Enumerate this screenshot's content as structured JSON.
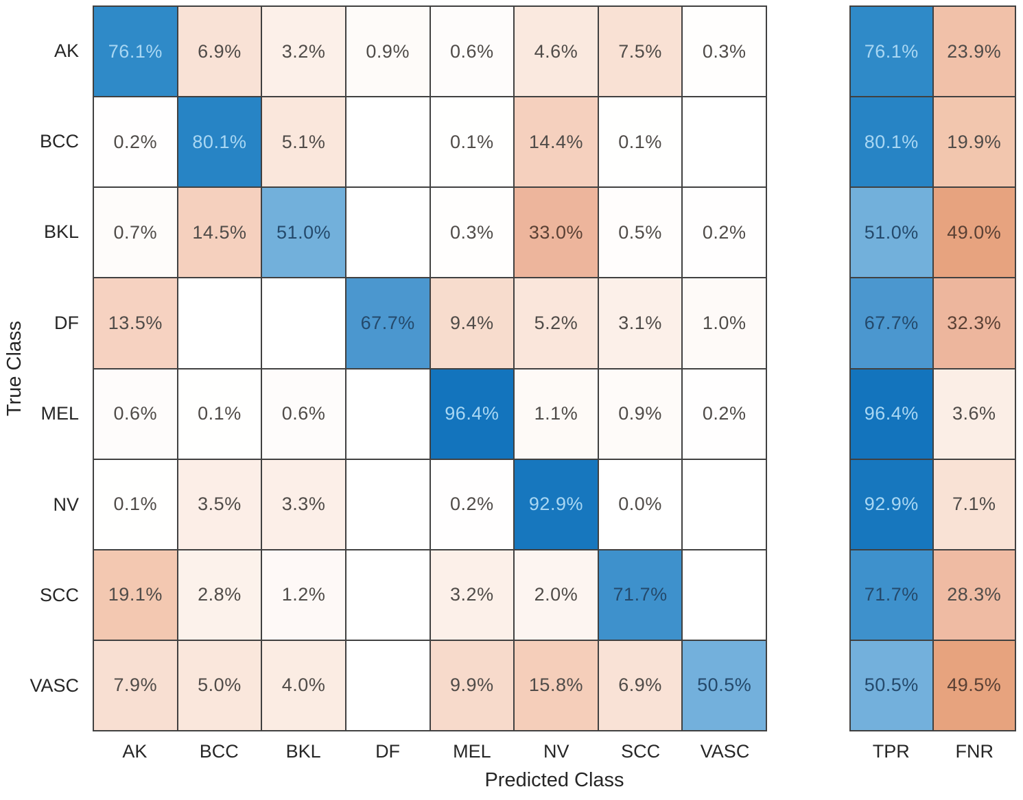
{
  "chart_data": {
    "type": "heatmap",
    "subtype": "confusion-matrix",
    "title": "",
    "xlabel": "Predicted Class",
    "ylabel": "True Class",
    "classes": [
      "AK",
      "BCC",
      "BKL",
      "DF",
      "MEL",
      "NV",
      "SCC",
      "VASC"
    ],
    "value_format": "percent_1dp",
    "matrix_percent": [
      [
        76.1,
        6.9,
        3.2,
        0.9,
        0.6,
        4.6,
        7.5,
        0.3
      ],
      [
        0.2,
        80.1,
        5.1,
        null,
        0.1,
        14.4,
        0.1,
        null
      ],
      [
        0.7,
        14.5,
        51.0,
        null,
        0.3,
        33.0,
        0.5,
        0.2
      ],
      [
        13.5,
        null,
        null,
        67.7,
        9.4,
        5.2,
        3.1,
        1.0
      ],
      [
        0.6,
        0.1,
        0.6,
        null,
        96.4,
        1.1,
        0.9,
        0.2
      ],
      [
        0.1,
        3.5,
        3.3,
        null,
        0.2,
        92.9,
        0.0,
        null
      ],
      [
        19.1,
        2.8,
        1.2,
        null,
        3.2,
        2.0,
        71.7,
        null
      ],
      [
        7.9,
        5.0,
        4.0,
        null,
        9.9,
        15.8,
        6.9,
        50.5
      ]
    ],
    "summary_columns": [
      "TPR",
      "FNR"
    ],
    "tpr": [
      76.1,
      80.1,
      51.0,
      67.7,
      96.4,
      92.9,
      71.7,
      50.5
    ],
    "fnr": [
      23.9,
      19.9,
      49.0,
      32.3,
      3.6,
      7.1,
      28.3,
      49.5
    ],
    "layout": {
      "grid_on": true,
      "legend": "none",
      "summary_position": "right"
    },
    "colors": {
      "grid_line": "#404040",
      "label_text": "#262626",
      "cell_text_light_blue": "#a9d7f3",
      "cell_text_dark_blue": "#24496b",
      "cell_text_dark_orange": "#5a4034",
      "cell_text_gray": "#4f4b48",
      "blue_stops": [
        [
          0,
          "#ffffff"
        ],
        [
          50,
          "#74b1dc"
        ],
        [
          68,
          "#4a97cf"
        ],
        [
          76,
          "#2f8ac8"
        ],
        [
          81,
          "#2583c4"
        ],
        [
          100,
          "#0f70bb"
        ]
      ],
      "orange_stops": [
        [
          0,
          "#ffffff"
        ],
        [
          5,
          "#fae7dc"
        ],
        [
          10,
          "#f7dacb"
        ],
        [
          15,
          "#f5cfbc"
        ],
        [
          20,
          "#f2c6ae"
        ],
        [
          33,
          "#edb59c"
        ],
        [
          50,
          "#e7a27d"
        ],
        [
          100,
          "#d95319"
        ]
      ]
    }
  }
}
